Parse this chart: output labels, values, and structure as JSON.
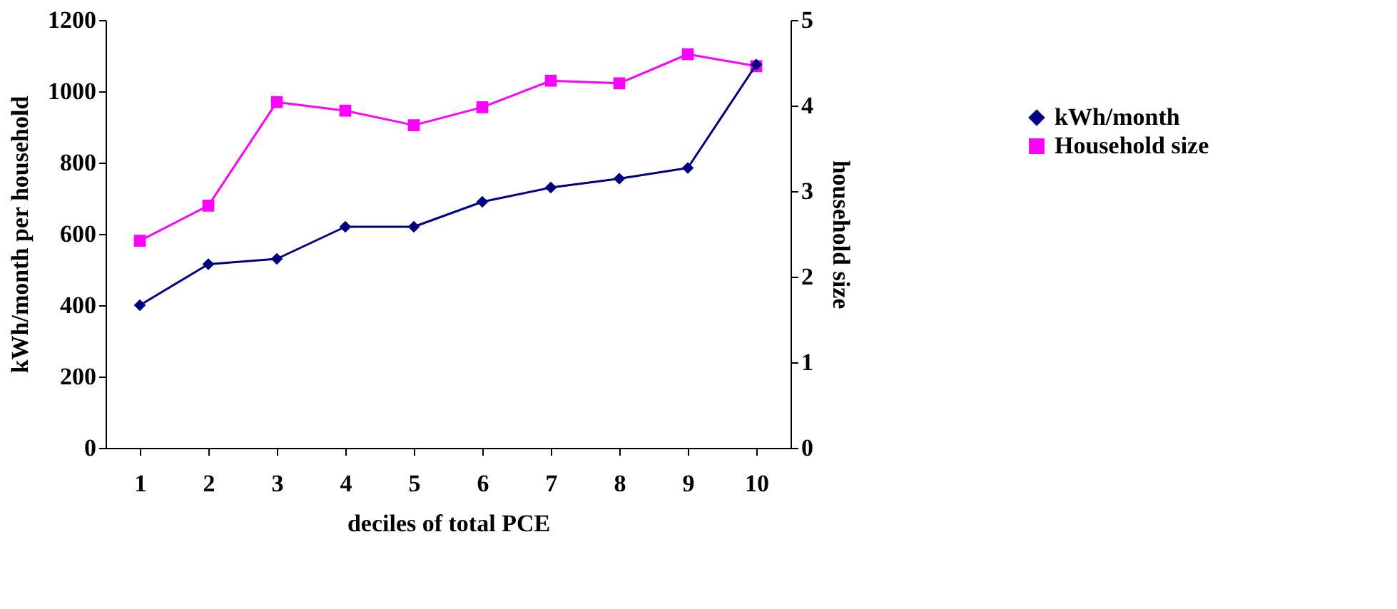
{
  "chart_data": {
    "type": "line",
    "xlabel": "deciles of total PCE",
    "ylabel": "kWh/month per household",
    "y2label": "household size",
    "categories": [
      "1",
      "2",
      "3",
      "4",
      "5",
      "6",
      "7",
      "8",
      "9",
      "10"
    ],
    "series": [
      {
        "name": "kWh/month",
        "color": "#000080",
        "marker": "diamond",
        "values": [
          400,
          515,
          530,
          620,
          620,
          690,
          730,
          755,
          785,
          1075
        ]
      },
      {
        "name": "Household size",
        "color": "#ff00ff",
        "marker": "square",
        "axis": "y2",
        "values": [
          2.42,
          2.83,
          4.04,
          3.94,
          3.77,
          3.98,
          4.29,
          4.26,
          4.6,
          4.46
        ]
      }
    ],
    "ylim": [
      0,
      1200
    ],
    "yticks": [
      0,
      200,
      400,
      600,
      800,
      1000,
      1200
    ],
    "y2lim": [
      0,
      5
    ],
    "y2ticks": [
      0,
      1,
      2,
      3,
      4,
      5
    ],
    "grid": false,
    "legend": "right"
  }
}
